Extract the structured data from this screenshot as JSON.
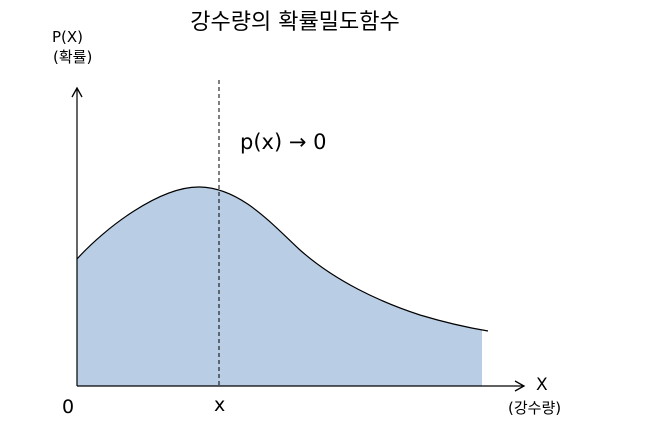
{
  "title": "강수량의 확률밀도함수",
  "y_axis": {
    "label": "P(X)",
    "sublabel": "(확률)"
  },
  "x_axis": {
    "label": "X",
    "sublabel": "(강수량)"
  },
  "origin_label": "0",
  "marker_label": "x",
  "annotation": "p(x) → 0",
  "colors": {
    "fill": "#b9cde4",
    "curve": "#000000",
    "axis": "#000000",
    "background": "#ffffff"
  }
}
